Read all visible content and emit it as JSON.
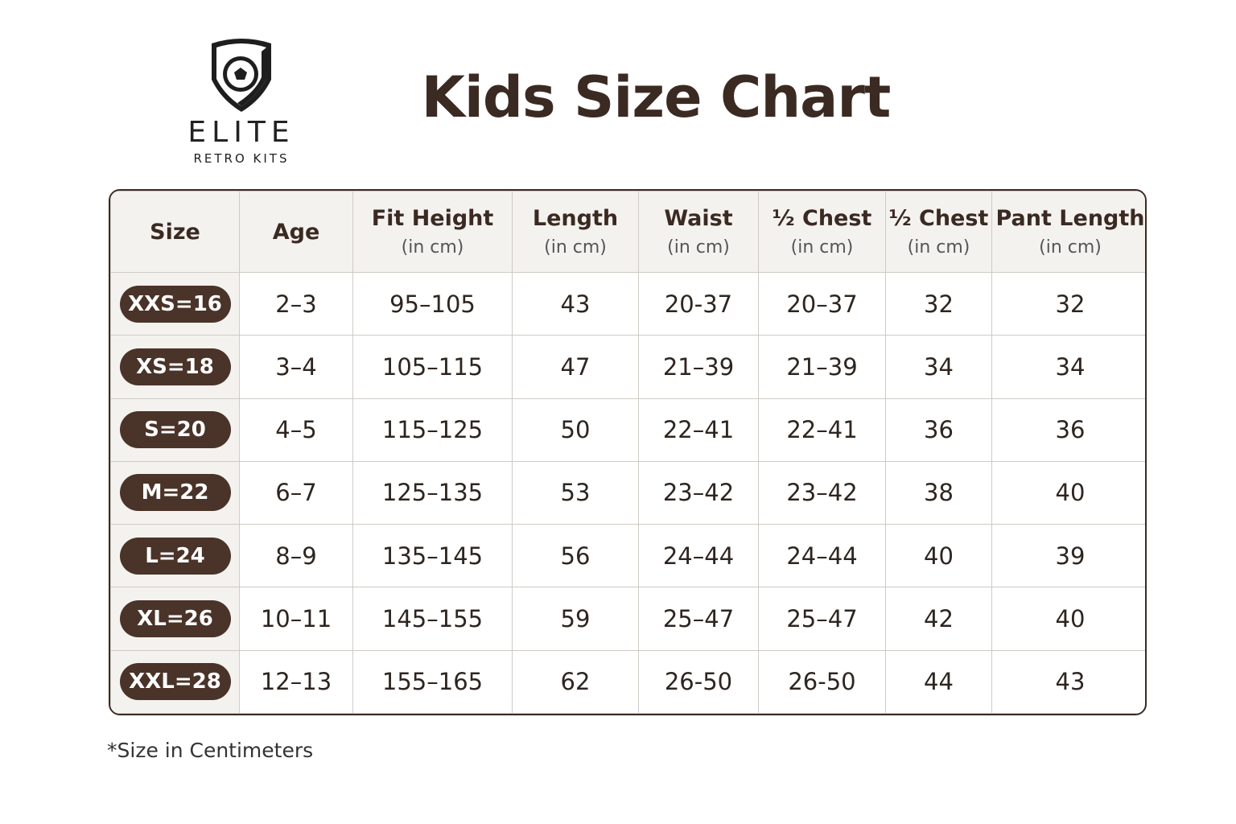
{
  "logo": {
    "brand": "ELITE",
    "tagline": "RETRO KITS"
  },
  "title": "Kids Size Chart",
  "table": {
    "headers": [
      {
        "name": "Size"
      },
      {
        "name": "Age"
      },
      {
        "name": "Fit Height",
        "unit": "(in cm)"
      },
      {
        "name": "Length",
        "unit": "(in cm)"
      },
      {
        "name": "Waist",
        "unit": "(in cm)"
      },
      {
        "name": "½ Chest",
        "unit": "(in cm)"
      },
      {
        "name": "½ Chest",
        "unit": "(in cm)"
      },
      {
        "name": "Pant Length",
        "unit": "(in cm)"
      }
    ],
    "rows": [
      [
        "XXS=16",
        "2–3",
        "95–105",
        "43",
        "20-37",
        "20–37",
        "32",
        "32"
      ],
      [
        "XS=18",
        "3–4",
        "105–115",
        "47",
        "21–39",
        "21–39",
        "34",
        "34"
      ],
      [
        "S=20",
        "4–5",
        "115–125",
        "50",
        "22–41",
        "22–41",
        "36",
        "36"
      ],
      [
        "M=22",
        "6–7",
        "125–135",
        "53",
        "23–42",
        "23–42",
        "38",
        "40"
      ],
      [
        "L=24",
        "8–9",
        "135–145",
        "56",
        "24–44",
        "24–44",
        "40",
        "39"
      ],
      [
        "XL=26",
        "10–11",
        "145–155",
        "59",
        "25–47",
        "25–47",
        "42",
        "40"
      ],
      [
        "XXL=28",
        "12–13",
        "155–165",
        "62",
        "26-50",
        "26-50",
        "44",
        "43"
      ]
    ]
  },
  "footnote": "*Size in Centimeters"
}
